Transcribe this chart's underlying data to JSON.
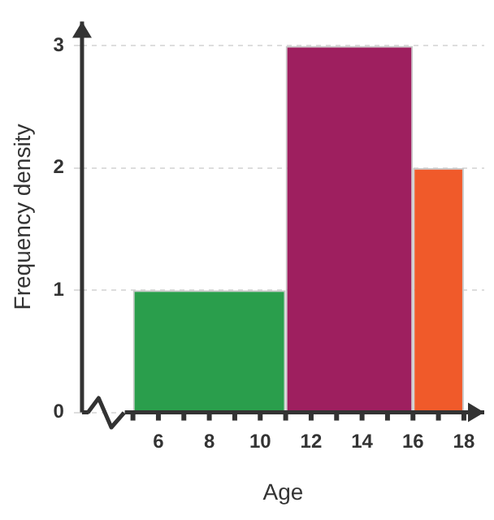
{
  "chart_data": {
    "type": "histogram",
    "bins": [
      5,
      11,
      16,
      18
    ],
    "values": [
      1,
      3,
      2
    ],
    "colors": [
      "#2a9e4c",
      "#9e1f5f",
      "#f05a2a"
    ],
    "xlabel": "Age",
    "ylabel": "Frequency density",
    "xlim": [
      3,
      18.8
    ],
    "ylim": [
      0,
      3.2
    ],
    "xticks": [
      {
        "value": 5,
        "label": null
      },
      6,
      {
        "value": 7,
        "label": null
      },
      8,
      {
        "value": 9,
        "label": null
      },
      10,
      {
        "value": 11,
        "label": null
      },
      12,
      {
        "value": 13,
        "label": null
      },
      14,
      {
        "value": 15,
        "label": null
      },
      16,
      {
        "value": 17,
        "label": null
      },
      18
    ],
    "yticks": [
      0,
      1,
      2,
      3
    ],
    "grid": "y"
  }
}
